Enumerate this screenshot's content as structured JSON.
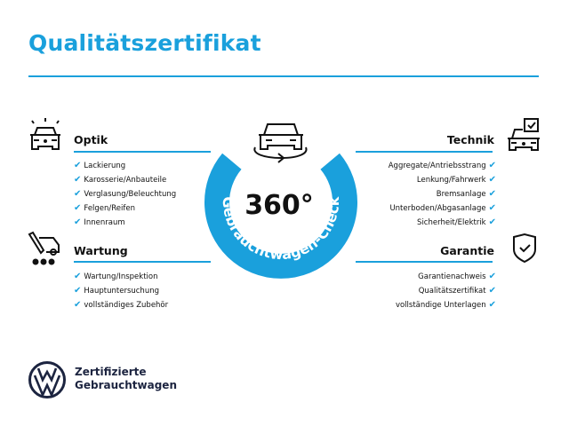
{
  "title": "Qualitätszertifikat",
  "colors": {
    "accent": "#1aa0dc",
    "dark": "#1c2440"
  },
  "badge": {
    "big_text": "360°",
    "ring_text": "Gebrauchtwagen-Check",
    "icon": "car-rotate-icon"
  },
  "check_mark": "✔",
  "sections": {
    "optik": {
      "heading": "Optik",
      "icon": "car-lights-icon",
      "items": [
        "Lackierung",
        "Karosserie/Anbauteile",
        "Verglasung/Beleuchtung",
        "Felgen/Reifen",
        "Innenraum"
      ]
    },
    "wartung": {
      "heading": "Wartung",
      "icon": "service-van-tools-icon",
      "items": [
        "Wartung/Inspektion",
        "Hauptuntersuchung",
        "vollständiges Zubehör"
      ]
    },
    "technik": {
      "heading": "Technik",
      "icon": "car-checkbox-icon",
      "items": [
        "Aggregate/Antriebsstrang",
        "Lenkung/Fahrwerk",
        "Bremsanlage",
        "Unterboden/Abgasanlage",
        "Sicherheit/Elektrik"
      ]
    },
    "garantie": {
      "heading": "Garantie",
      "icon": "shield-check-icon",
      "items": [
        "Garantienachweis",
        "Qualitätszertifikat",
        "vollständige Unterlagen"
      ]
    }
  },
  "footer": {
    "logo": "VW",
    "line1": "Zertifizierte",
    "line2": "Gebrauchtwagen"
  }
}
